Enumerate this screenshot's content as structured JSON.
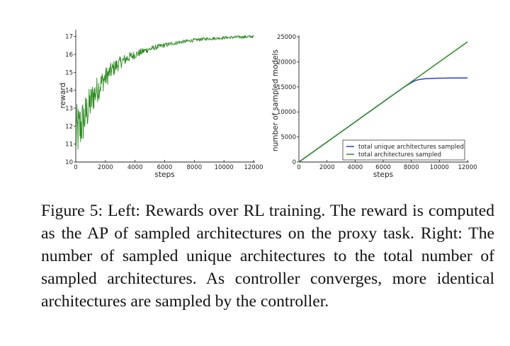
{
  "chart_data": [
    {
      "type": "line",
      "title": "",
      "xlabel": "steps",
      "ylabel": "reward",
      "xlim": [
        0,
        12000
      ],
      "ylim": [
        10,
        17.3
      ],
      "xticks": [
        0,
        2000,
        4000,
        6000,
        8000,
        10000,
        12000
      ],
      "yticks": [
        10,
        11,
        12,
        13,
        14,
        15,
        16,
        17
      ],
      "grid": false,
      "colors": {
        "series": "#2e8b22",
        "axis": "#222222"
      },
      "series": [
        {
          "x": [
            0,
            200,
            400,
            600,
            800,
            1000,
            1200,
            1500,
            1800,
            2100,
            2400,
            2700,
            3000,
            3300,
            3600,
            3900,
            4200,
            4600,
            5000,
            5500,
            6000,
            6500,
            7000,
            7500,
            8000,
            8500,
            9000,
            9500,
            10000,
            10500,
            11000,
            11500,
            12000
          ],
          "y": [
            11.5,
            11.8,
            12.1,
            12.5,
            12.9,
            13.3,
            13.7,
            14.1,
            14.5,
            14.8,
            15.1,
            15.35,
            15.55,
            15.7,
            15.85,
            15.95,
            16.05,
            16.2,
            16.3,
            16.42,
            16.52,
            16.6,
            16.68,
            16.74,
            16.8,
            16.85,
            16.88,
            16.9,
            16.93,
            16.95,
            16.97,
            16.98,
            17.0
          ]
        }
      ]
    },
    {
      "type": "line",
      "title": "",
      "xlabel": "steps",
      "ylabel": "number of sampled models",
      "xlim": [
        0,
        12000
      ],
      "ylim": [
        0,
        25000
      ],
      "xticks": [
        0,
        2000,
        4000,
        6000,
        8000,
        10000,
        12000
      ],
      "yticks": [
        0,
        5000,
        10000,
        15000,
        20000,
        25000
      ],
      "grid": false,
      "legend_position": "lower right",
      "series": [
        {
          "name": "total unique architectures sampled",
          "color": "#2c3fd0",
          "x": [
            0,
            7600,
            7800,
            8000,
            8200,
            8400,
            8600,
            8800,
            9000,
            9500,
            10000,
            11000,
            12000
          ],
          "y": [
            0,
            15200,
            15500,
            15850,
            16150,
            16350,
            16480,
            16560,
            16620,
            16700,
            16740,
            16780,
            16800
          ]
        },
        {
          "name": "total architectures sampled",
          "color": "#2e8b22",
          "x": [
            0,
            12000
          ],
          "y": [
            0,
            24000
          ]
        }
      ]
    }
  ],
  "caption": "Figure 5: Left: Rewards over RL training. The reward is computed as the AP of sampled architectures on the proxy task. Right: The number of sampled unique architectures to the total number of sampled architectures. As controller converges, more identical architectures are sampled by the controller."
}
